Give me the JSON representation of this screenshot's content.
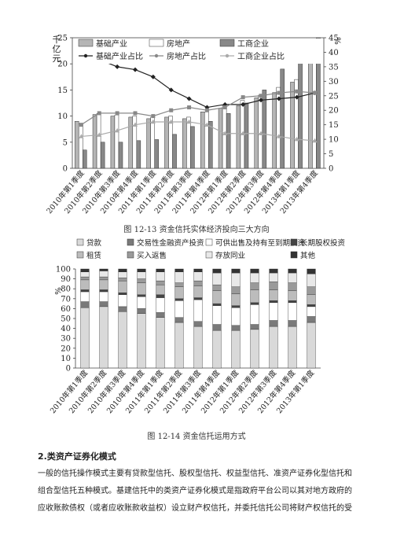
{
  "charts": [
    {
      "caption": "图 12-13 资金信托实体经济投向三大方向",
      "chart_data": {
        "type": "bar",
        "categories": [
          "2010年第1季度",
          "2010年第2季度",
          "2010年第3季度",
          "2010年第4季度",
          "2011年第1季度",
          "2011年第2季度",
          "2011年第3季度",
          "2011年第4季度",
          "2012年第1季度",
          "2012年第2季度",
          "2012年第3季度",
          "2012年第4季度",
          "2013年第1季度",
          "2013年第4季度"
        ],
        "ylabel": "千亿元",
        "y2label": "%",
        "ylim": [
          0,
          25
        ],
        "y2lim": [
          0,
          45
        ],
        "yticks": [
          0,
          5,
          10,
          15,
          20,
          25
        ],
        "y2ticks": [
          0,
          5,
          10,
          15,
          20,
          25,
          30,
          35,
          40,
          45
        ],
        "series": [
          {
            "name": "基础产业",
            "kind": "bar",
            "color": "#b5b5b5",
            "values": [
              9,
              10.3,
              10,
              9.8,
              9.5,
              9.8,
              9.5,
              10.8,
              11.5,
              12,
              13.5,
              14.5,
              16.5,
              21
            ]
          },
          {
            "name": "房地产",
            "kind": "bar",
            "color": "#ffffff",
            "values": [
              8.5,
              10.5,
              10.2,
              10,
              9.8,
              10,
              9.8,
              10.8,
              12,
              13,
              14,
              15.5,
              17,
              20.5
            ]
          },
          {
            "name": "工商企业",
            "kind": "bar",
            "color": "#888888",
            "values": [
              3.5,
              5,
              5,
              5.3,
              5.5,
              6.5,
              8,
              9,
              10.5,
              12.5,
              15,
              19,
              23,
              25
            ]
          },
          {
            "name": "基础产业占比",
            "kind": "line",
            "marker": "diamond",
            "color": "#222222",
            "values": [
              40,
              37.5,
              35,
              34,
              31.5,
              27,
              24,
              21,
              22,
              22,
              23.5,
              24,
              24.5,
              26
            ]
          },
          {
            "name": "房地产占比",
            "kind": "line",
            "marker": "square",
            "color": "#888888",
            "values": [
              15,
              19,
              19,
              19,
              18,
              20,
              21,
              20,
              21,
              24.5,
              25,
              26,
              26.5,
              26
            ]
          },
          {
            "name": "工商企业占比",
            "kind": "line",
            "marker": "triangle",
            "color": "#aaaaaa",
            "values": [
              11,
              11.5,
              13,
              15,
              16,
              16,
              16,
              15,
              12,
              12,
              12,
              11,
              10,
              9.5
            ]
          }
        ],
        "legend": "top"
      }
    },
    {
      "caption": "图 12-14 资金信托运用方式",
      "chart_data": {
        "type": "bar",
        "stacked": true,
        "categories": [
          "2010年第1季度",
          "2010年第2季度",
          "2010年第3季度",
          "2010年第4季度",
          "2011年第1季度",
          "2011年第2季度",
          "2011年第3季度",
          "2011年第4季度",
          "2012年第1季度",
          "2012年第2季度",
          "2012年第3季度",
          "2012年第4季度",
          "2013年第1季度"
        ],
        "ylabel": "%",
        "ylim": [
          0,
          100
        ],
        "yticks": [
          0,
          10,
          20,
          30,
          40,
          50,
          60,
          70,
          80,
          90,
          100
        ],
        "legend": "top",
        "series": [
          {
            "name": "贷款",
            "color": "#d9d9d9",
            "values": [
              61,
              62,
              57,
              55,
              51,
              46,
              42,
              38,
              38,
              39,
              42,
              42,
              46
            ]
          },
          {
            "name": "交易性金融资产投资",
            "color": "#7a7a7a",
            "values": [
              6,
              5,
              5,
              5,
              5,
              5,
              5,
              6,
              5,
              5,
              6,
              6,
              6
            ]
          },
          {
            "name": "可供出售及持有至到期投资",
            "color": "#ffffff",
            "values": [
              10,
              10,
              12,
              12,
              15,
              17,
              22,
              19,
              18,
              20,
              18,
              18,
              10
            ]
          },
          {
            "name": "长期股权投资",
            "color": "#444444",
            "values": [
              2,
              2,
              2,
              2,
              3,
              2,
              2,
              2,
              2,
              2,
              2,
              2,
              2
            ]
          },
          {
            "name": "租赁",
            "color": "#bcbcbc",
            "values": [
              10,
              10,
              12,
              12,
              10,
              12,
              12,
              13,
              12,
              13,
              11,
              10,
              10
            ]
          },
          {
            "name": "买入返售",
            "color": "#9a9a9a",
            "values": [
              3,
              3,
              3,
              4,
              4,
              4,
              5,
              6,
              7,
              7,
              8,
              8,
              8
            ]
          },
          {
            "name": "存放同业",
            "color": "#e8e8e8",
            "values": [
              5,
              6,
              6,
              7,
              9,
              11,
              9,
              12,
              14,
              10,
              9,
              10,
              13
            ]
          },
          {
            "name": "其他",
            "color": "#333333",
            "values": [
              3,
              2,
              3,
              3,
              3,
              3,
              3,
              4,
              4,
              4,
              4,
              4,
              5
            ]
          }
        ]
      }
    }
  ],
  "section_title": "2.类资产证券化模式",
  "paragraph": [
    "一般的信托操作模式主要有贷款型信托、股权型信托、权益型信托、准资产证券化型信托和",
    "组合型信托五种模式。基建信托中的类资产证券化模式是指政府平台公司以其对地方政府的",
    "应收账款债权（或者应收账款收益权）设立财产权信托，并委托信托公司将财产权信托的受"
  ]
}
